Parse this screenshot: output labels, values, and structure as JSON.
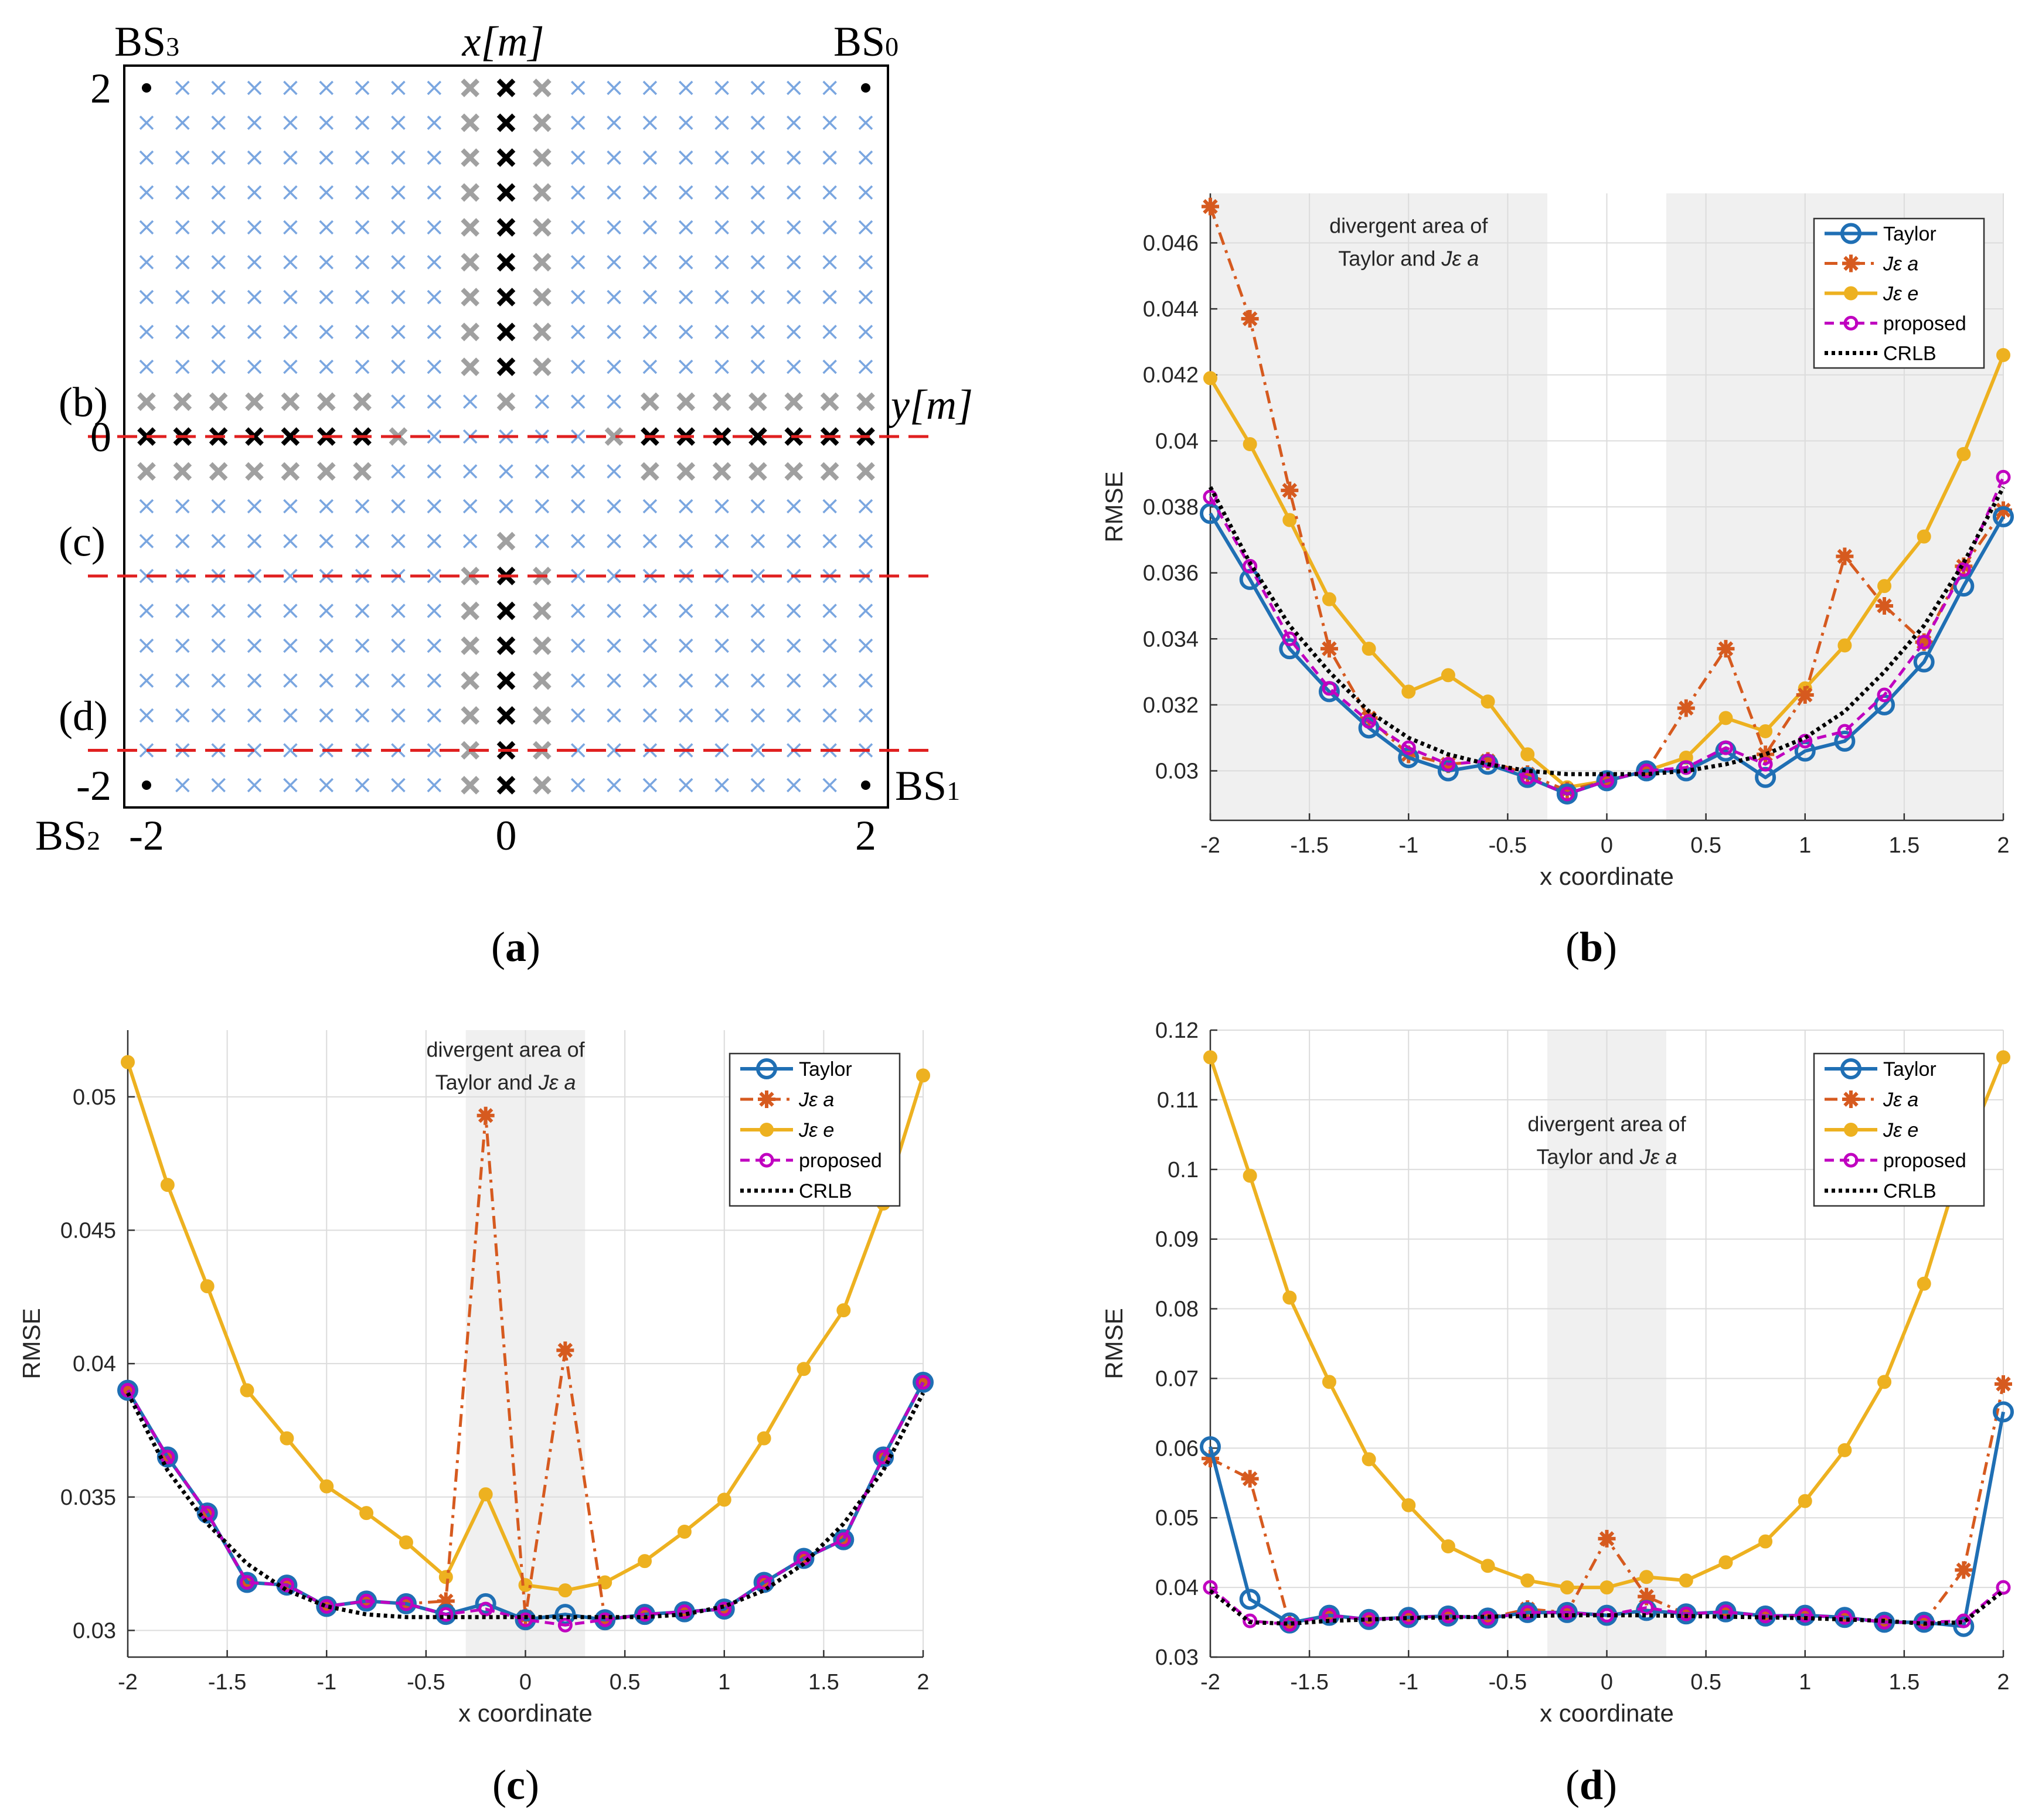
{
  "panel_labels": {
    "a": "a",
    "b": "b",
    "c": "c",
    "d": "d"
  },
  "colors": {
    "taylor": "#1f6fb4",
    "jea": "#d65a1f",
    "jee": "#edb120",
    "proposed": "#c000c0",
    "crlb": "#000000",
    "grid_cross": "#7aa6e0",
    "gray_cross": "#a0a0a0",
    "red_dash": "#e02020",
    "shade": "#f0f0f0"
  },
  "chart_data": [
    {
      "type": "scatter",
      "panel": "a",
      "title": "",
      "xlabel": "x[m]",
      "ylabel": "y[m]",
      "xlim": [
        -2,
        2
      ],
      "ylim": [
        -2,
        2
      ],
      "x_ticks": [
        "-2",
        "0",
        "2"
      ],
      "y_ticks": [
        "2",
        "0",
        "-2"
      ],
      "stations": [
        {
          "label": "BS",
          "sub": "3",
          "x": -2,
          "y": 2
        },
        {
          "label": "BS",
          "sub": "0",
          "x": 2,
          "y": 2
        },
        {
          "label": "BS",
          "sub": "1",
          "x": 2,
          "y": -2
        },
        {
          "label": "BS",
          "sub": "2",
          "x": -2,
          "y": -2
        }
      ],
      "grid_step": 0.2,
      "row_labels": [
        {
          "label": "(b)",
          "y": 0.2
        },
        {
          "label": "(c)",
          "y": -0.6
        },
        {
          "label": "(d)",
          "y": -1.6
        }
      ],
      "dashed_lines_y": [
        0,
        -0.8,
        -1.8
      ],
      "black_points_desc": "column x=0 for y in [0.4,2] and [-2,-0.8]; row y=0 for x in [-2,-0.8] and [0.8,2]",
      "gray_points_desc": "columns x=±0.2 and rows y=±0.2 adjacent to black points"
    },
    {
      "type": "line",
      "panel": "b",
      "xlabel": "x coordinate",
      "ylabel": "RMSE",
      "xlim": [
        -2,
        2
      ],
      "ylim": [
        0.0285,
        0.0475
      ],
      "x_ticks": [
        -2,
        -1.5,
        -1,
        -0.5,
        0,
        0.5,
        1,
        1.5,
        2
      ],
      "y_ticks": [
        0.03,
        0.032,
        0.034,
        0.036,
        0.038,
        0.04,
        0.042,
        0.044,
        0.046
      ],
      "shaded": [
        [
          -2,
          -0.3
        ],
        [
          0.3,
          2
        ]
      ],
      "annotation": {
        "line1": "divergent area of",
        "line2": "Taylor and",
        "var": "Jε a",
        "x": -1.0,
        "y": 0.0463
      },
      "legend": [
        "Taylor",
        "Jε a",
        "Jε e",
        "proposed",
        "CRLB"
      ],
      "x": [
        -2,
        -1.8,
        -1.6,
        -1.4,
        -1.2,
        -1,
        -0.8,
        -0.6,
        -0.4,
        -0.2,
        0,
        0.2,
        0.4,
        0.6,
        0.8,
        1,
        1.2,
        1.4,
        1.6,
        1.8,
        2
      ],
      "series": [
        {
          "name": "Taylor",
          "values": [
            0.0378,
            0.0358,
            0.0337,
            0.0324,
            0.0313,
            0.0304,
            0.03,
            0.0302,
            0.0298,
            0.0293,
            0.0297,
            0.03,
            0.03,
            0.0306,
            0.0298,
            0.0306,
            0.0309,
            0.032,
            0.0333,
            0.0356,
            0.0377
          ]
        },
        {
          "name": "Jε a",
          "values": [
            0.0471,
            0.0437,
            0.0385,
            0.0337,
            0.0316,
            0.0305,
            0.0302,
            0.0303,
            0.0299,
            0.0294,
            0.0297,
            0.03,
            0.0319,
            0.0337,
            0.0305,
            0.0323,
            0.0365,
            0.035,
            0.0339,
            0.0362,
            0.0379
          ]
        },
        {
          "name": "Jε e",
          "values": [
            0.0419,
            0.0399,
            0.0376,
            0.0352,
            0.0337,
            0.0324,
            0.0329,
            0.0321,
            0.0305,
            0.0295,
            0.0297,
            0.03,
            0.0304,
            0.0316,
            0.0312,
            0.0325,
            0.0338,
            0.0356,
            0.0371,
            0.0396,
            0.0426
          ]
        },
        {
          "name": "proposed",
          "values": [
            0.0383,
            0.0362,
            0.034,
            0.0325,
            0.0315,
            0.0307,
            0.0302,
            0.0303,
            0.0298,
            0.0293,
            0.0297,
            0.03,
            0.0301,
            0.0307,
            0.0302,
            0.0309,
            0.0312,
            0.0323,
            0.0339,
            0.0361,
            0.0389
          ]
        },
        {
          "name": "CRLB",
          "values": [
            0.0386,
            0.0363,
            0.0344,
            0.033,
            0.0318,
            0.031,
            0.0305,
            0.0302,
            0.03,
            0.0299,
            0.0299,
            0.0299,
            0.03,
            0.0302,
            0.0305,
            0.031,
            0.0318,
            0.033,
            0.0344,
            0.0363,
            0.0386
          ]
        }
      ]
    },
    {
      "type": "line",
      "panel": "c",
      "xlabel": "x coordinate",
      "ylabel": "RMSE",
      "xlim": [
        -2,
        2
      ],
      "ylim": [
        0.029,
        0.0525
      ],
      "x_ticks": [
        -2,
        -1.5,
        -1,
        -0.5,
        0,
        0.5,
        1,
        1.5,
        2
      ],
      "y_ticks": [
        0.03,
        0.035,
        0.04,
        0.045,
        0.05
      ],
      "shaded": [
        [
          -0.3,
          0.3
        ]
      ],
      "annotation": {
        "line1": "divergent area of",
        "line2": "Taylor and",
        "var": "Jε a",
        "x": -0.1,
        "y": 0.0515
      },
      "legend": [
        "Taylor",
        "Jε a",
        "Jε e",
        "proposed",
        "CRLB"
      ],
      "x": [
        -2,
        -1.8,
        -1.6,
        -1.4,
        -1.2,
        -1,
        -0.8,
        -0.6,
        -0.4,
        -0.2,
        0,
        0.2,
        0.4,
        0.6,
        0.8,
        1,
        1.2,
        1.4,
        1.6,
        1.8,
        2
      ],
      "series": [
        {
          "name": "Taylor",
          "values": [
            0.039,
            0.0365,
            0.0344,
            0.0318,
            0.0317,
            0.0309,
            0.0311,
            0.031,
            0.0306,
            0.031,
            0.0304,
            0.0306,
            0.0304,
            0.0306,
            0.0307,
            0.0308,
            0.0318,
            0.0327,
            0.0334,
            0.0365,
            0.0393
          ]
        },
        {
          "name": "Jε a",
          "values": [
            0.039,
            0.0365,
            0.0344,
            0.0318,
            0.0317,
            0.0309,
            0.0311,
            0.031,
            0.0311,
            0.0493,
            0.0305,
            0.0405,
            0.0304,
            0.0306,
            0.0307,
            0.0308,
            0.0318,
            0.0327,
            0.0334,
            0.0365,
            0.0393
          ]
        },
        {
          "name": "Jε e",
          "values": [
            0.0513,
            0.0467,
            0.0429,
            0.039,
            0.0372,
            0.0354,
            0.0344,
            0.0333,
            0.032,
            0.0351,
            0.0317,
            0.0315,
            0.0318,
            0.0326,
            0.0337,
            0.0349,
            0.0372,
            0.0398,
            0.042,
            0.046,
            0.0508
          ]
        },
        {
          "name": "proposed",
          "values": [
            0.039,
            0.0365,
            0.0344,
            0.0318,
            0.0317,
            0.0309,
            0.0311,
            0.031,
            0.0306,
            0.0308,
            0.0304,
            0.0302,
            0.0304,
            0.0306,
            0.0307,
            0.0308,
            0.0318,
            0.0327,
            0.0334,
            0.0365,
            0.0393
          ]
        },
        {
          "name": "CRLB",
          "values": [
            0.0389,
            0.036,
            0.034,
            0.0325,
            0.0315,
            0.0309,
            0.0306,
            0.0305,
            0.0305,
            0.0305,
            0.0305,
            0.0305,
            0.0305,
            0.0305,
            0.0306,
            0.0309,
            0.0315,
            0.0325,
            0.034,
            0.036,
            0.0389
          ]
        }
      ]
    },
    {
      "type": "line",
      "panel": "d",
      "xlabel": "x coordinate",
      "ylabel": "RMSE",
      "xlim": [
        -2,
        2
      ],
      "ylim": [
        0.03,
        0.12
      ],
      "x_ticks": [
        -2,
        -1.5,
        -1,
        -0.5,
        0,
        0.5,
        1,
        1.5,
        2
      ],
      "y_ticks": [
        0.03,
        0.04,
        0.05,
        0.06,
        0.07,
        0.08,
        0.09,
        0.1,
        0.11,
        0.12
      ],
      "shaded": [
        [
          -0.3,
          0.3
        ]
      ],
      "annotation": {
        "line1": "divergent area of",
        "line2": "Taylor and",
        "var": "Jε a",
        "x": 0.0,
        "y": 0.1055
      },
      "legend": [
        "Taylor",
        "Jε a",
        "Jε e",
        "proposed",
        "CRLB"
      ],
      "x": [
        -2,
        -1.8,
        -1.6,
        -1.4,
        -1.2,
        -1,
        -0.8,
        -0.6,
        -0.4,
        -0.2,
        0,
        0.2,
        0.4,
        0.6,
        0.8,
        1,
        1.2,
        1.4,
        1.6,
        1.8,
        2
      ],
      "series": [
        {
          "name": "Taylor",
          "values": [
            0.0602,
            0.0383,
            0.0349,
            0.036,
            0.0354,
            0.0357,
            0.0359,
            0.0356,
            0.0364,
            0.0364,
            0.036,
            0.0367,
            0.0362,
            0.0365,
            0.0359,
            0.036,
            0.0357,
            0.035,
            0.035,
            0.0344,
            0.0652
          ]
        },
        {
          "name": "Jε a",
          "values": [
            0.0585,
            0.0556,
            0.0347,
            0.036,
            0.0354,
            0.0357,
            0.0359,
            0.0356,
            0.0369,
            0.0364,
            0.047,
            0.0387,
            0.0362,
            0.0365,
            0.0359,
            0.036,
            0.0357,
            0.035,
            0.035,
            0.0425,
            0.0692
          ]
        },
        {
          "name": "Jε e",
          "values": [
            0.1161,
            0.0991,
            0.0816,
            0.0695,
            0.0584,
            0.0518,
            0.0459,
            0.0431,
            0.041,
            0.04,
            0.04,
            0.0415,
            0.041,
            0.0436,
            0.0466,
            0.0524,
            0.0597,
            0.0695,
            0.0836,
            0.1021,
            0.1161
          ]
        },
        {
          "name": "proposed",
          "values": [
            0.04,
            0.0352,
            0.0347,
            0.036,
            0.0354,
            0.0357,
            0.0359,
            0.0356,
            0.0364,
            0.0364,
            0.036,
            0.0371,
            0.0362,
            0.0365,
            0.0359,
            0.036,
            0.0357,
            0.035,
            0.035,
            0.0352,
            0.04
          ]
        },
        {
          "name": "CRLB",
          "values": [
            0.0395,
            0.035,
            0.0348,
            0.0352,
            0.0354,
            0.0356,
            0.0357,
            0.0358,
            0.0359,
            0.036,
            0.036,
            0.036,
            0.0359,
            0.0358,
            0.0357,
            0.0356,
            0.0354,
            0.0352,
            0.0348,
            0.035,
            0.0395
          ]
        }
      ]
    }
  ]
}
